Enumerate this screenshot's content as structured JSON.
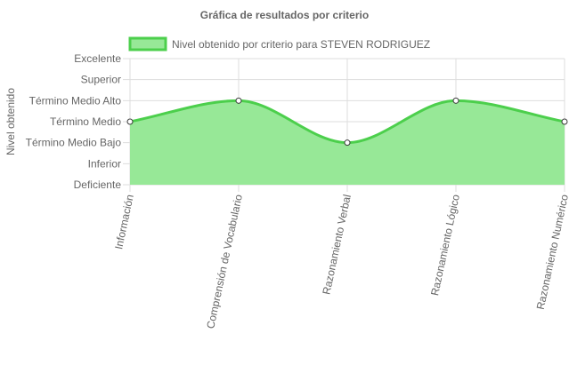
{
  "chart_data": {
    "type": "area",
    "title": "Gráfica de resultados por criterio",
    "ylabel": "Nivel obtenido",
    "xlabel": "",
    "categories": [
      "Información",
      "Comprensión de Vocabulario",
      "Razonamiento Verbal",
      "Razonamiento Lógico",
      "Razonamiento Numérico"
    ],
    "y_levels": [
      "Deficiente",
      "Inferior",
      "Término Medio Bajo",
      "Término Medio",
      "Término Medio Alto",
      "Superior",
      "Excelente"
    ],
    "series": [
      {
        "name": "Nivel obtenido por criterio para STEVEN RODRIGUEZ",
        "values": [
          3,
          4,
          2,
          4,
          3
        ]
      }
    ],
    "ylim": [
      0,
      6
    ],
    "grid": true,
    "legend": "top",
    "colors": {
      "fill": "#97e897",
      "line": "#4ccf4c",
      "point_fill": "#ffffff",
      "point_stroke": "#3a3a3a",
      "grid": "#dddddd",
      "text": "#666666"
    }
  }
}
